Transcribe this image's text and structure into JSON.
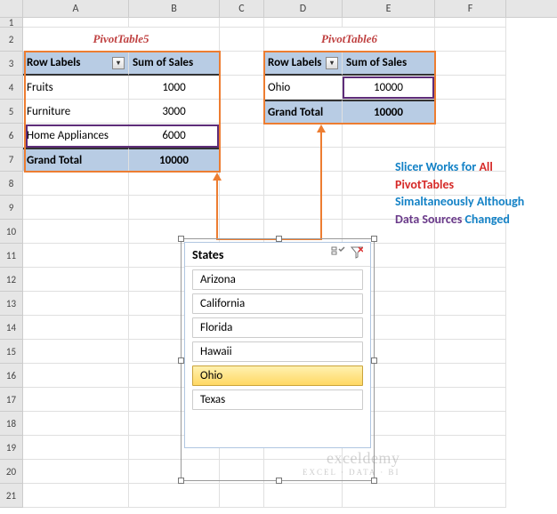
{
  "columns": [
    {
      "label": "A",
      "w": 119
    },
    {
      "label": "B",
      "w": 102
    },
    {
      "label": "C",
      "w": 50
    },
    {
      "label": "D",
      "w": 88
    },
    {
      "label": "E",
      "w": 104
    },
    {
      "label": "F",
      "w": 80
    }
  ],
  "rows": [
    {
      "n": 1,
      "h": 11
    },
    {
      "n": 2,
      "h": 27
    },
    {
      "n": 3,
      "h": 27
    },
    {
      "n": 4,
      "h": 27
    },
    {
      "n": 5,
      "h": 27
    },
    {
      "n": 6,
      "h": 27
    },
    {
      "n": 7,
      "h": 27
    },
    {
      "n": 8,
      "h": 27
    },
    {
      "n": 9,
      "h": 27
    },
    {
      "n": 10,
      "h": 27
    },
    {
      "n": 11,
      "h": 27
    },
    {
      "n": 12,
      "h": 27
    },
    {
      "n": 13,
      "h": 27
    },
    {
      "n": 14,
      "h": 27
    },
    {
      "n": 15,
      "h": 27
    },
    {
      "n": 16,
      "h": 27
    },
    {
      "n": 17,
      "h": 27
    },
    {
      "n": 18,
      "h": 27
    },
    {
      "n": 19,
      "h": 27
    },
    {
      "n": 20,
      "h": 27
    },
    {
      "n": 21,
      "h": 27
    }
  ],
  "pivot5": {
    "title": "PivotTable5",
    "header_row_labels": "Row Labels",
    "header_sum": "Sum of Sales",
    "rows": [
      {
        "label": "Fruits",
        "val": "1000"
      },
      {
        "label": "Furniture",
        "val": "3000"
      },
      {
        "label": "Home Appliances",
        "val": "6000"
      }
    ],
    "total_label": "Grand Total",
    "total_val": "10000"
  },
  "pivot6": {
    "title": "PivotTable6",
    "header_row_labels": "Row Labels",
    "header_sum": "Sum of Sales",
    "rows": [
      {
        "label": "Ohio",
        "val": "10000"
      }
    ],
    "total_label": "Grand Total",
    "total_val": "10000"
  },
  "slicer": {
    "title": "States",
    "items": [
      {
        "label": "Arizona",
        "sel": false
      },
      {
        "label": "California",
        "sel": false
      },
      {
        "label": "Florida",
        "sel": false
      },
      {
        "label": "Hawaii",
        "sel": false
      },
      {
        "label": "Ohio",
        "sel": true
      },
      {
        "label": "Texas",
        "sel": false
      }
    ]
  },
  "note": {
    "l1a": "Slicer Works for ",
    "l1b": "All",
    "l2": "PivotTables",
    "l3a": "Simaltaneously Although",
    "l4a": "Data Sources",
    "l4b": " Changed"
  },
  "watermark": {
    "brand": "exceldemy",
    "tag": "EXCEL · DATA · BI"
  },
  "colors": {
    "orange": "#ed7d31",
    "purple": "#5e2d79",
    "header_bg": "#b8cce4"
  }
}
